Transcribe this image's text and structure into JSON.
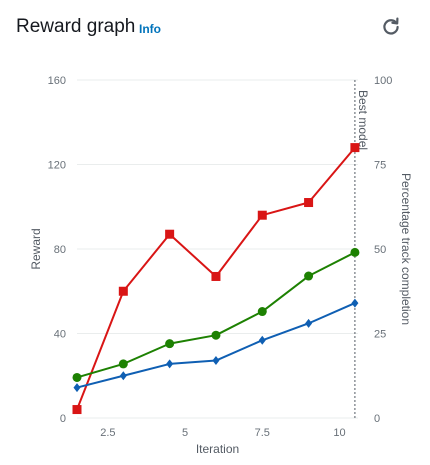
{
  "header": {
    "title": "Reward graph",
    "info_label": "Info",
    "refresh_icon": "refresh-icon"
  },
  "chart_data": {
    "type": "line",
    "xlabel": "Iteration",
    "ylabel": "Reward",
    "y2label": "Percentage track completion",
    "xlim": [
      1.5,
      10.6
    ],
    "ylim": [
      0,
      160
    ],
    "y2lim": [
      0,
      100
    ],
    "xticks": [
      2.5,
      5,
      7.5,
      10
    ],
    "yticks": [
      0,
      40,
      80,
      120,
      160
    ],
    "y2ticks": [
      0,
      25,
      50,
      75,
      100
    ],
    "grid": true,
    "annotations": [
      {
        "text": "Best model",
        "x": 10.5
      }
    ],
    "series": [
      {
        "axis": "left",
        "color": "#d91515",
        "marker": "square",
        "x": [
          1.5,
          3,
          4.5,
          6,
          7.5,
          9,
          10.5
        ],
        "values": [
          4,
          60,
          87,
          67,
          96,
          102,
          128
        ]
      },
      {
        "axis": "right",
        "color": "#1d8102",
        "marker": "circle",
        "x": [
          1.5,
          3,
          4.5,
          6,
          7.5,
          9,
          10.5
        ],
        "values": [
          12,
          16,
          22,
          24.5,
          31.5,
          42,
          49
        ]
      },
      {
        "axis": "right",
        "color": "#0f5fb3",
        "marker": "diamond",
        "x": [
          1.5,
          3,
          4.5,
          6,
          7.5,
          9,
          10.5
        ],
        "values": [
          9,
          12.5,
          16,
          17,
          23,
          28,
          34
        ]
      }
    ]
  }
}
